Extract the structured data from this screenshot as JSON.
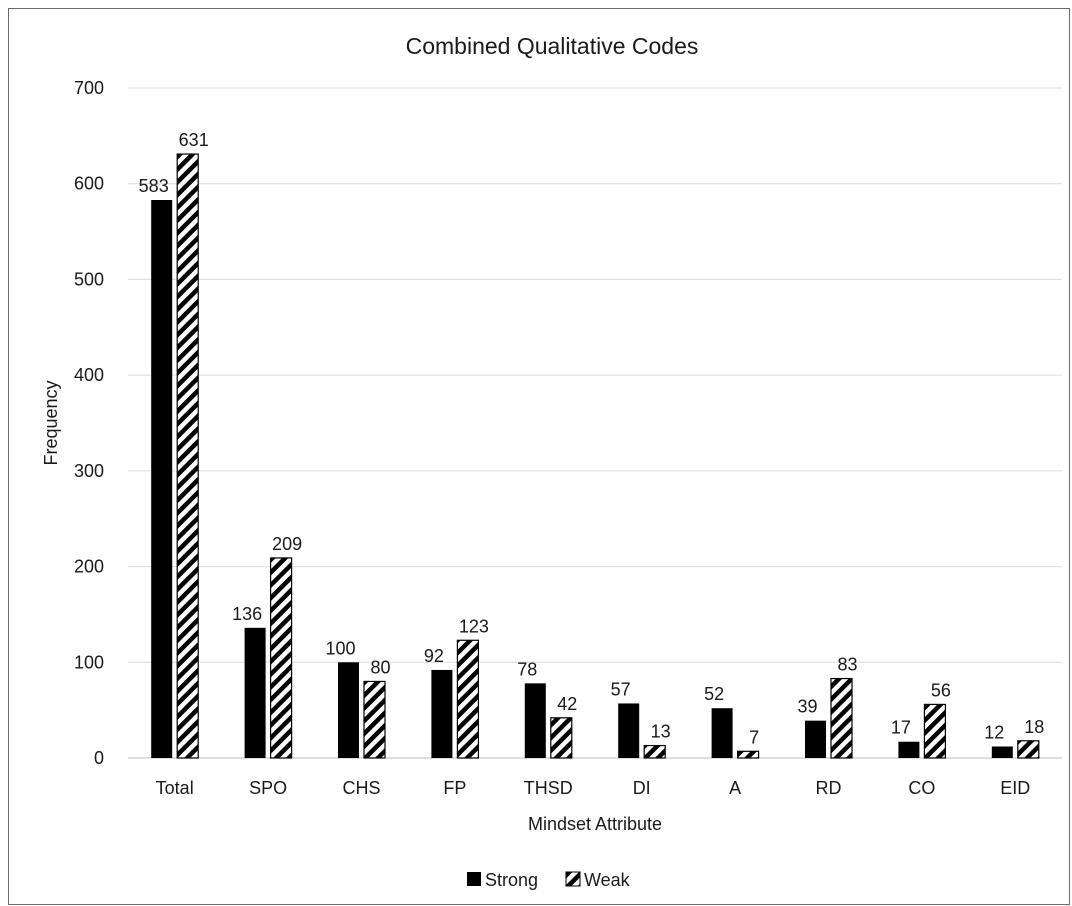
{
  "chart_data": {
    "type": "bar",
    "title": "Combined Qualitative Codes",
    "xlabel": "Mindset Attribute",
    "ylabel": "Frequency",
    "ylim": [
      0,
      700
    ],
    "yticks": [
      0,
      100,
      200,
      300,
      400,
      500,
      600,
      700
    ],
    "grid": true,
    "legend_position": "bottom",
    "categories": [
      "Total",
      "SPO",
      "CHS",
      "FP",
      "THSD",
      "DI",
      "A",
      "RD",
      "CO",
      "EID"
    ],
    "series": [
      {
        "name": "Strong",
        "values": [
          583,
          136,
          100,
          92,
          78,
          57,
          52,
          39,
          17,
          12
        ],
        "fill": "solid",
        "color": "#000000"
      },
      {
        "name": "Weak",
        "values": [
          631,
          209,
          80,
          123,
          42,
          13,
          7,
          83,
          56,
          18
        ],
        "fill": "diagonal-hatch",
        "color": "#000000"
      }
    ]
  }
}
